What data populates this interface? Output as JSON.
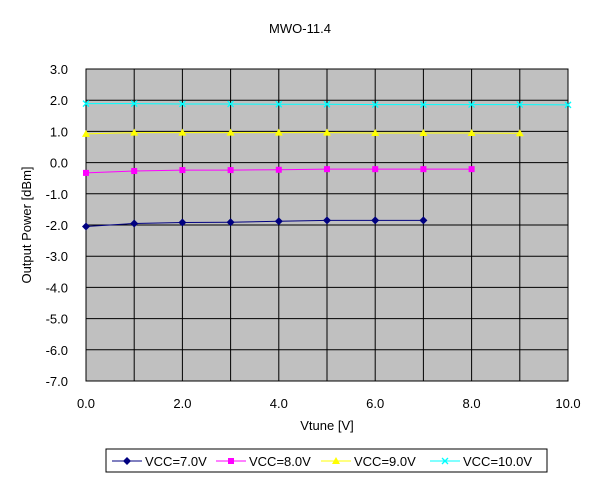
{
  "chart_data": {
    "type": "line",
    "title": "MWO-11.4",
    "xlabel": "Vtune [V]",
    "ylabel": "Output Power [dBm]",
    "xlim": [
      0,
      10
    ],
    "ylim": [
      -7,
      3
    ],
    "x_ticks": [
      "0.0",
      "2.0",
      "4.0",
      "6.0",
      "8.0",
      "10.0"
    ],
    "y_ticks": [
      "3.0",
      "2.0",
      "1.0",
      "0.0",
      "-1.0",
      "-2.0",
      "-3.0",
      "-4.0",
      "-5.0",
      "-6.0",
      "-7.0"
    ],
    "grid": true,
    "plot_background": "#c0c0c0",
    "legend_position": "bottom",
    "series": [
      {
        "name": "VCC=7.0V",
        "color": "#000080",
        "marker": "diamond",
        "x": [
          0,
          1,
          2,
          3,
          4,
          5,
          6,
          7
        ],
        "y": [
          -2.05,
          -1.95,
          -1.92,
          -1.91,
          -1.88,
          -1.85,
          -1.85,
          -1.85
        ]
      },
      {
        "name": "VCC=8.0V",
        "color": "#ff00ff",
        "marker": "square",
        "x": [
          0,
          1,
          2,
          3,
          4,
          5,
          6,
          7,
          8
        ],
        "y": [
          -0.33,
          -0.27,
          -0.24,
          -0.24,
          -0.23,
          -0.21,
          -0.21,
          -0.21,
          -0.21
        ]
      },
      {
        "name": "VCC=9.0V",
        "color": "#ffff00",
        "marker": "triangle",
        "x": [
          0,
          1,
          2,
          3,
          4,
          5,
          6,
          7,
          8,
          9
        ],
        "y": [
          0.92,
          0.96,
          0.96,
          0.96,
          0.96,
          0.96,
          0.95,
          0.95,
          0.95,
          0.94
        ]
      },
      {
        "name": "VCC=10.0V",
        "color": "#00ffff",
        "marker": "x",
        "x": [
          0,
          1,
          2,
          3,
          4,
          5,
          6,
          7,
          8,
          9,
          10
        ],
        "y": [
          1.89,
          1.89,
          1.88,
          1.88,
          1.87,
          1.87,
          1.86,
          1.86,
          1.86,
          1.86,
          1.85
        ]
      }
    ]
  }
}
